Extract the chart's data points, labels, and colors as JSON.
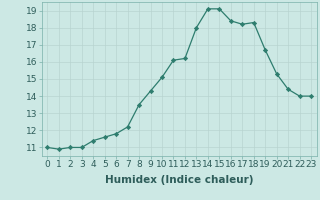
{
  "x": [
    0,
    1,
    2,
    3,
    4,
    5,
    6,
    7,
    8,
    9,
    10,
    11,
    12,
    13,
    14,
    15,
    16,
    17,
    18,
    19,
    20,
    21,
    22,
    23
  ],
  "y": [
    11.0,
    10.9,
    11.0,
    11.0,
    11.4,
    11.6,
    11.8,
    12.2,
    13.5,
    14.3,
    15.1,
    16.1,
    16.2,
    18.0,
    19.1,
    19.1,
    18.4,
    18.2,
    18.3,
    16.7,
    15.3,
    14.4,
    14.0,
    14.0
  ],
  "xlabel": "Humidex (Indice chaleur)",
  "ylim": [
    10.5,
    19.5
  ],
  "xlim": [
    -0.5,
    23.5
  ],
  "yticks": [
    11,
    12,
    13,
    14,
    15,
    16,
    17,
    18,
    19
  ],
  "xticks": [
    0,
    1,
    2,
    3,
    4,
    5,
    6,
    7,
    8,
    9,
    10,
    11,
    12,
    13,
    14,
    15,
    16,
    17,
    18,
    19,
    20,
    21,
    22,
    23
  ],
  "xtick_labels": [
    "0",
    "1",
    "2",
    "3",
    "4",
    "5",
    "6",
    "7",
    "8",
    "9",
    "10",
    "11",
    "12",
    "13",
    "14",
    "15",
    "16",
    "17",
    "18",
    "19",
    "20",
    "21",
    "22",
    "23"
  ],
  "line_color": "#2e7d6e",
  "marker": "D",
  "marker_size": 2.2,
  "bg_color": "#cce8e4",
  "grid_color": "#b8d4d0",
  "xlabel_fontsize": 7.5,
  "tick_fontsize": 6.5
}
